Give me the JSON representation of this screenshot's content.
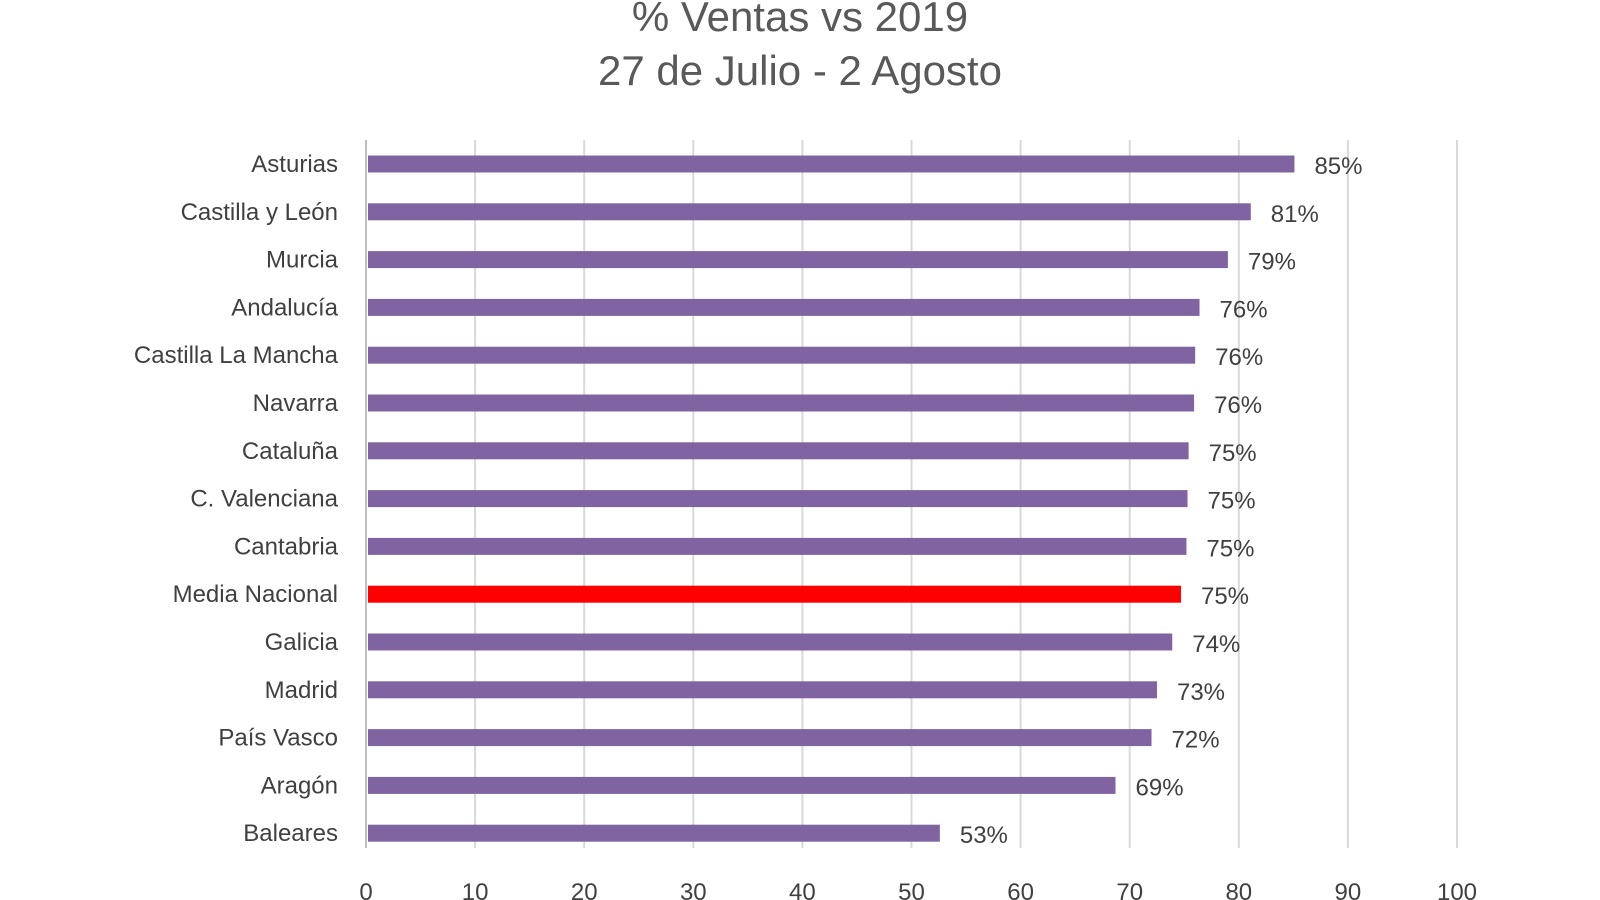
{
  "chart_data": {
    "type": "bar",
    "orientation": "horizontal",
    "title": "% Ventas vs 2019",
    "subtitle": "27 de Julio - 2 Agosto",
    "xlabel": "",
    "ylabel": "",
    "xlim": [
      0,
      100
    ],
    "xticks": [
      "0",
      "10",
      "20",
      "30",
      "40",
      "50",
      "60",
      "70",
      "80",
      "90",
      "100"
    ],
    "grid": true,
    "categories": [
      "Asturias",
      "Castilla y León",
      "Murcia",
      "Andalucía",
      "Castilla La Mancha",
      "Navarra",
      "Cataluña",
      "C. Valenciana",
      "Cantabria",
      "Media Nacional",
      "Galicia",
      "Madrid",
      "País Vasco",
      "Aragón",
      "Baleares"
    ],
    "values": [
      85.1,
      81.1,
      79.0,
      76.4,
      76.0,
      75.9,
      75.4,
      75.3,
      75.2,
      74.7,
      73.9,
      72.5,
      72.0,
      68.7,
      52.6
    ],
    "labels": [
      "85%",
      "81%",
      "79%",
      "76%",
      "76%",
      "76%",
      "75%",
      "75%",
      "75%",
      "75%",
      "74%",
      "73%",
      "72%",
      "69%",
      "53%"
    ],
    "highlight": "Media Nacional",
    "colors": {
      "bar": "#8064A2",
      "highlight": "#FF0000",
      "grid": "#D9D9D9",
      "text": "#404040"
    }
  }
}
